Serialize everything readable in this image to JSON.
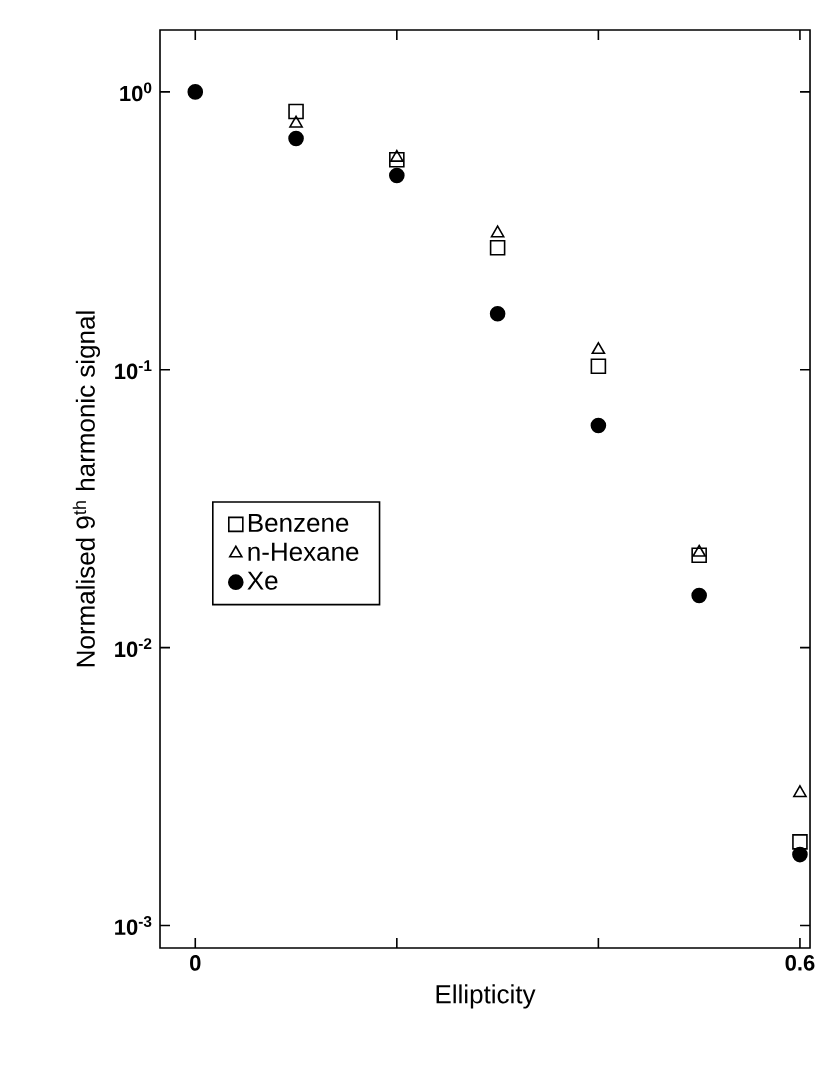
{
  "chart_data": {
    "type": "scatter",
    "xlabel": "Ellipticity",
    "ylabel": "Normalised 9$^{th}$ harmonic signal",
    "x": [
      0,
      0.1,
      0.2,
      0.3,
      0.4,
      0.5,
      0.6
    ],
    "series": [
      {
        "name": "Benzene",
        "color": "#000000",
        "marker": "square",
        "values": [
          null,
          0.85,
          0.57,
          0.275,
          0.103,
          0.0215,
          0.002
        ]
      },
      {
        "name": "n-Hexane",
        "color": "#000000",
        "marker": "triangle",
        "values": [
          null,
          0.77,
          0.58,
          0.31,
          0.118,
          0.022,
          0.003
        ]
      },
      {
        "name": "Xe",
        "color": "#000000",
        "marker": "circle",
        "values": [
          1.0,
          0.68,
          0.5,
          0.159,
          0.063,
          0.0154,
          0.0018
        ]
      }
    ],
    "log": "y",
    "xlim": [
      -0.035,
      0.61
    ],
    "ylim": [
      0.00083,
      1.67
    ],
    "xticks": [
      0,
      {
        "value": 0.2,
        "label": null
      },
      {
        "value": 0.4,
        "label": null
      },
      0.6
    ],
    "yticks": [
      {
        "value": 1,
        "label": "10$^{0}$"
      },
      {
        "value": 0.1,
        "label": "10$^{-1}$"
      },
      {
        "value": 0.01,
        "label": "10$^{-2}$"
      },
      {
        "value": 0.001,
        "label": "10$^{-3}$"
      }
    ],
    "legend": "left",
    "grid": false
  }
}
